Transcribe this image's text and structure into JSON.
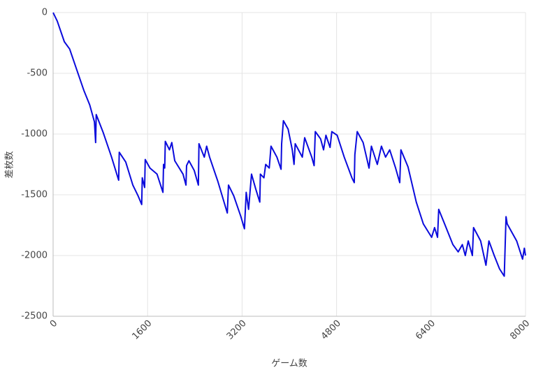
{
  "chart_data": {
    "type": "line",
    "x_label": "ゲーム数",
    "y_label": "差枚数",
    "x": [
      0,
      70,
      190,
      280,
      400,
      520,
      620,
      700,
      720,
      730,
      850,
      990,
      1110,
      1120,
      1230,
      1350,
      1440,
      1500,
      1510,
      1550,
      1560,
      1640,
      1760,
      1860,
      1870,
      1890,
      1900,
      1970,
      2010,
      2060,
      2200,
      2250,
      2260,
      2300,
      2390,
      2460,
      2470,
      2560,
      2600,
      2650,
      2790,
      2950,
      2970,
      3060,
      3180,
      3240,
      3270,
      3310,
      3360,
      3430,
      3500,
      3510,
      3570,
      3600,
      3660,
      3690,
      3790,
      3860,
      3870,
      3900,
      3980,
      4050,
      4080,
      4100,
      4220,
      4260,
      4380,
      4420,
      4440,
      4530,
      4580,
      4620,
      4690,
      4720,
      4810,
      4930,
      5060,
      5100,
      5110,
      5150,
      5250,
      5350,
      5390,
      5490,
      5560,
      5630,
      5700,
      5800,
      5870,
      5890,
      6010,
      6150,
      6270,
      6410,
      6460,
      6510,
      6530,
      6630,
      6770,
      6860,
      6930,
      6980,
      7030,
      7100,
      7120,
      7240,
      7330,
      7380,
      7470,
      7560,
      7640,
      7670,
      7690,
      7850,
      7950,
      7980,
      8000
    ],
    "values": [
      0,
      -70,
      -240,
      -300,
      -470,
      -640,
      -760,
      -900,
      -1070,
      -840,
      -990,
      -1190,
      -1380,
      -1150,
      -1230,
      -1420,
      -1510,
      -1580,
      -1360,
      -1440,
      -1210,
      -1280,
      -1330,
      -1480,
      -1250,
      -1280,
      -1060,
      -1130,
      -1070,
      -1220,
      -1330,
      -1420,
      -1260,
      -1220,
      -1300,
      -1420,
      -1080,
      -1190,
      -1100,
      -1190,
      -1390,
      -1650,
      -1420,
      -1510,
      -1680,
      -1780,
      -1480,
      -1620,
      -1330,
      -1450,
      -1560,
      -1330,
      -1360,
      -1250,
      -1280,
      -1100,
      -1190,
      -1290,
      -1080,
      -890,
      -960,
      -1130,
      -1250,
      -1080,
      -1190,
      -1030,
      -1190,
      -1260,
      -980,
      -1040,
      -1130,
      -1010,
      -1110,
      -980,
      -1010,
      -1190,
      -1360,
      -1400,
      -1170,
      -980,
      -1070,
      -1280,
      -1100,
      -1250,
      -1100,
      -1190,
      -1130,
      -1280,
      -1400,
      -1130,
      -1270,
      -1560,
      -1740,
      -1850,
      -1770,
      -1850,
      -1620,
      -1740,
      -1910,
      -1970,
      -1910,
      -2000,
      -1880,
      -2000,
      -1770,
      -1880,
      -2080,
      -1880,
      -2000,
      -2110,
      -2170,
      -1680,
      -1740,
      -1880,
      -2030,
      -1940,
      -2000
    ],
    "color": "#0a0adc",
    "xlim": [
      0,
      8000
    ],
    "xticks": [
      0,
      1600,
      3200,
      4800,
      6400,
      8000
    ],
    "ylim": [
      -2500,
      0
    ],
    "yticks": [
      0,
      -500,
      -1000,
      -1500,
      -2000,
      -2500
    ],
    "grid": true
  }
}
